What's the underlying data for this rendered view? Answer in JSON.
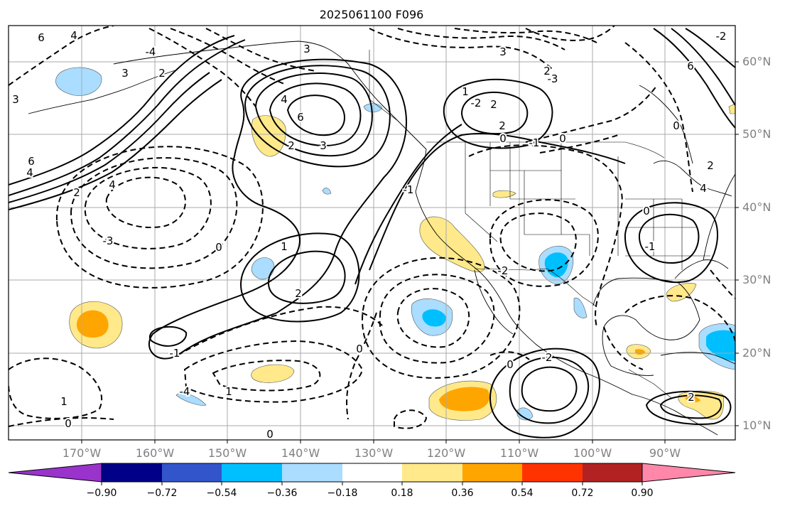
{
  "title": "2025061100 F096",
  "latitude_labels": [
    "10°N",
    "20°N",
    "30°N",
    "40°N",
    "50°N",
    "60°N"
  ],
  "longitude_labels": [
    "170°W",
    "160°W",
    "150°W",
    "140°W",
    "130°W",
    "120°W",
    "110°W",
    "100°W",
    "90°W"
  ],
  "colorbar": {
    "ticks": [
      "−0.90",
      "−0.72",
      "−0.54",
      "−0.36",
      "−0.18",
      "0.18",
      "0.36",
      "0.54",
      "0.72",
      "0.90"
    ],
    "colors": [
      "#9933cc",
      "#000088",
      "#3355cc",
      "#00bfff",
      "#aaddff",
      "#ffffff",
      "#ffe98a",
      "#ffa500",
      "#ff3300",
      "#b22222",
      "#ff88aa"
    ]
  },
  "contour_labels": [
    {
      "text": "6"
    },
    {
      "text": "4"
    },
    {
      "text": "3"
    },
    {
      "text": "2"
    },
    {
      "text": "6"
    },
    {
      "text": "4"
    },
    {
      "text": "2"
    },
    {
      "text": "4"
    },
    {
      "text": "3"
    },
    {
      "text": "6"
    },
    {
      "text": "4"
    },
    {
      "text": "3"
    },
    {
      "text": "2"
    },
    {
      "text": "3"
    },
    {
      "text": "-3"
    },
    {
      "text": "0"
    },
    {
      "text": "1"
    },
    {
      "text": "2"
    },
    {
      "text": "-1"
    },
    {
      "text": "0"
    },
    {
      "text": "-1"
    },
    {
      "text": "0"
    },
    {
      "text": "-2"
    },
    {
      "text": "1"
    },
    {
      "text": "2"
    },
    {
      "text": "2"
    },
    {
      "text": "0"
    },
    {
      "text": "-1"
    },
    {
      "text": "-2"
    },
    {
      "text": "-3"
    },
    {
      "text": "-4"
    },
    {
      "text": "0"
    },
    {
      "text": "2"
    },
    {
      "text": "3"
    },
    {
      "text": "2"
    },
    {
      "text": "-1"
    },
    {
      "text": "0"
    },
    {
      "text": "1"
    },
    {
      "text": "0"
    },
    {
      "text": "0"
    },
    {
      "text": "1"
    },
    {
      "text": "0"
    },
    {
      "text": "-2"
    },
    {
      "text": "-4"
    },
    {
      "text": "-2"
    },
    {
      "text": "6"
    },
    {
      "text": "4"
    },
    {
      "text": "2"
    }
  ]
}
